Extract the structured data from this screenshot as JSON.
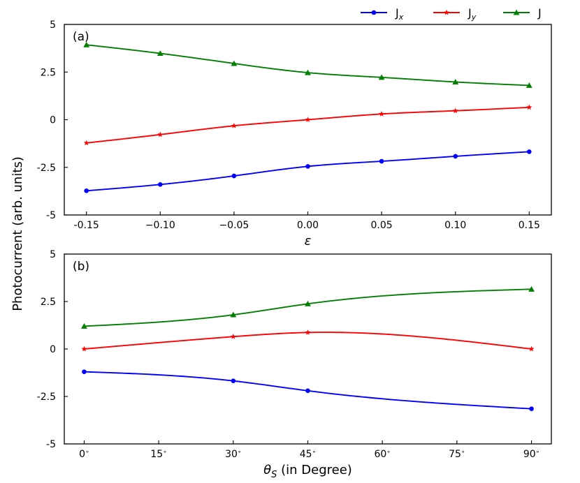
{
  "legend": {
    "items": [
      {
        "label": "J",
        "sub": "x",
        "color": "#0000ff",
        "marker": "circle"
      },
      {
        "label": "J",
        "sub": "y",
        "color": "#ff0000",
        "marker": "star"
      },
      {
        "label": "J",
        "sub": "",
        "color": "#008000",
        "marker": "triangle"
      }
    ]
  },
  "shared_ylabel": "Photocurrent (arb. units)",
  "chart_data": [
    {
      "type": "line",
      "panel_label": "(a)",
      "xlabel": "ε",
      "ylabel": "Photocurrent (arb. units)",
      "xlim": [
        -0.165,
        0.165
      ],
      "ylim": [
        -5,
        5
      ],
      "xticks": [
        -0.15,
        -0.1,
        -0.05,
        0.0,
        0.05,
        0.1,
        0.15
      ],
      "xticklabels": [
        "-0.15",
        "−0.10",
        "−0.05",
        "0.00",
        "0.05",
        "0.10",
        "0.15"
      ],
      "yticks": [
        -5,
        -2.5,
        0,
        2.5,
        5
      ],
      "yticklabels": [
        "-5",
        "-2.5",
        "0",
        "2.5",
        "5"
      ],
      "x": [
        -0.15,
        -0.1,
        -0.05,
        0.0,
        0.05,
        0.1,
        0.15
      ],
      "series": [
        {
          "name": "Jx",
          "values": [
            -3.73,
            -3.4,
            -2.95,
            -2.45,
            -2.18,
            -1.92,
            -1.68
          ]
        },
        {
          "name": "Jy",
          "values": [
            -1.22,
            -0.78,
            -0.32,
            0.0,
            0.3,
            0.47,
            0.65
          ]
        },
        {
          "name": "J",
          "values": [
            3.93,
            3.48,
            2.95,
            2.47,
            2.22,
            1.98,
            1.8
          ]
        }
      ]
    },
    {
      "type": "line",
      "panel_label": "(b)",
      "xlabel": "θS (in Degree)",
      "ylabel": "Photocurrent (arb. units)",
      "xlim": [
        -4,
        94
      ],
      "ylim": [
        -5,
        5
      ],
      "xticks": [
        0,
        15,
        30,
        45,
        60,
        75,
        90
      ],
      "xticklabels": [
        "0",
        "15",
        "30",
        "45",
        "60",
        "75",
        "90"
      ],
      "yticks": [
        -5,
        -2.5,
        0,
        2.5,
        5
      ],
      "yticklabels": [
        "-5",
        "-2.5",
        "0",
        "2.5",
        "5"
      ],
      "x": [
        0,
        30,
        45,
        90
      ],
      "series": [
        {
          "name": "Jx",
          "values": [
            -1.2,
            -1.68,
            -2.2,
            -3.15
          ]
        },
        {
          "name": "Jy",
          "values": [
            0.0,
            0.65,
            0.87,
            0.0
          ]
        },
        {
          "name": "J",
          "values": [
            1.2,
            1.8,
            2.38,
            3.15
          ]
        }
      ]
    }
  ]
}
